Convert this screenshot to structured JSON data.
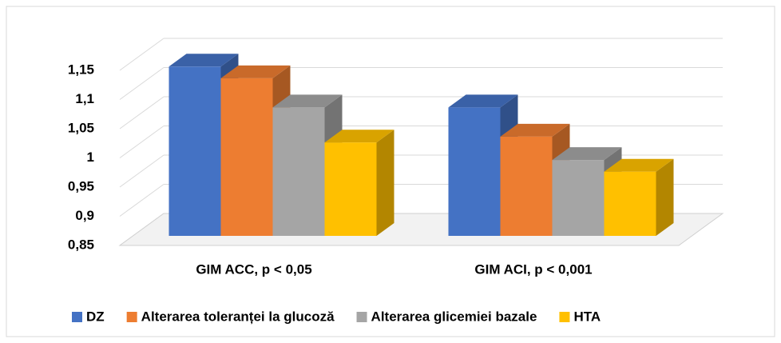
{
  "chart_data": {
    "type": "bar3d",
    "categories": [
      "GIM ACC,  p < 0,05",
      "GIM ACI, p < 0,001"
    ],
    "series": [
      {
        "name": "DZ",
        "color": "#4472c4",
        "values": [
          1.14,
          1.07
        ]
      },
      {
        "name": "Alterarea toleranței la glucoză",
        "color": "#ed7d31",
        "values": [
          1.12,
          1.02
        ]
      },
      {
        "name": "Alterarea glicemiei bazale",
        "color": "#a5a5a5",
        "values": [
          1.07,
          0.98
        ]
      },
      {
        "name": "HTA",
        "color": "#ffc000",
        "values": [
          1.01,
          0.96
        ]
      }
    ],
    "ylim": [
      0.85,
      1.15
    ],
    "yticks": [
      {
        "value": 0.85,
        "label": "0,85"
      },
      {
        "value": 0.9,
        "label": "0,9"
      },
      {
        "value": 0.95,
        "label": "0,95"
      },
      1,
      {
        "value": 1.05,
        "label": "1,05"
      },
      {
        "value": 1.1,
        "label": "1,1"
      },
      {
        "value": 1.15,
        "label": "1,15"
      }
    ],
    "grid": true,
    "legend": "bottom"
  }
}
